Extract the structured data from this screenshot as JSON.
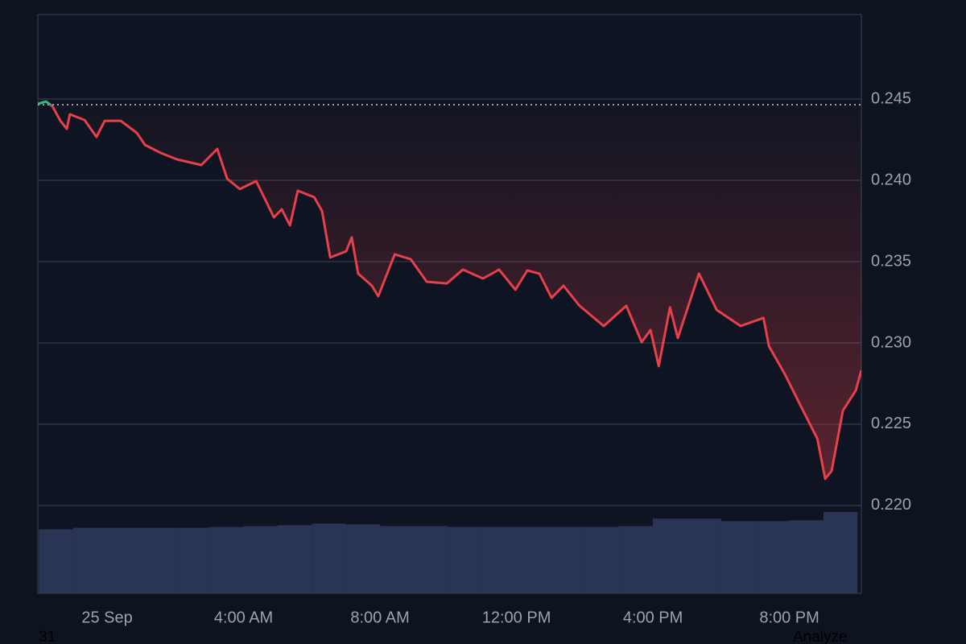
{
  "chart_data": {
    "type": "line",
    "x": [
      -2.03,
      -1.79,
      -1.6,
      -1.37,
      -1.18,
      -1.09,
      -0.66,
      -0.31,
      -0.07,
      0.4,
      0.87,
      1.11,
      1.58,
      2.05,
      2.76,
      3.23,
      3.52,
      3.89,
      4.37,
      4.89,
      5.12,
      5.36,
      5.59,
      6.07,
      6.3,
      6.54,
      7.01,
      7.17,
      7.36,
      7.76,
      7.95,
      8.43,
      8.9,
      9.37,
      9.96,
      10.43,
      11.02,
      11.49,
      11.97,
      12.32,
      12.67,
      13.03,
      13.38,
      13.85,
      14.56,
      15.22,
      15.67,
      15.93,
      16.17,
      16.5,
      16.73,
      17.35,
      17.87,
      18.57,
      19.24,
      19.4,
      19.87,
      20.34,
      20.82,
      21.05,
      21.24,
      21.57,
      21.95,
      22.11
    ],
    "series": [
      {
        "color": "#e8404a",
        "color_above": "#2ebd85",
        "values": [
          0.2447,
          0.24485,
          0.24455,
          0.24366,
          0.24317,
          0.24406,
          0.24371,
          0.24267,
          0.24366,
          0.24366,
          0.24292,
          0.24218,
          0.24168,
          0.24129,
          0.24094,
          0.24193,
          0.2401,
          0.23946,
          0.23995,
          0.23772,
          0.23822,
          0.23723,
          0.23936,
          0.23896,
          0.23812,
          0.23525,
          0.23564,
          0.23649,
          0.23426,
          0.23352,
          0.23287,
          0.23545,
          0.23515,
          0.23376,
          0.23366,
          0.23451,
          0.23396,
          0.23451,
          0.23327,
          0.23446,
          0.23426,
          0.23277,
          0.23352,
          0.23228,
          0.23104,
          0.23228,
          0.23005,
          0.23079,
          0.22857,
          0.23218,
          0.2303,
          0.23426,
          0.23203,
          0.23104,
          0.23154,
          0.2298,
          0.22807,
          0.22609,
          0.22411,
          0.22164,
          0.22213,
          0.22584,
          0.22708,
          0.22832
        ]
      }
    ],
    "reference": 0.24465,
    "volume": {
      "color": "#2a3556",
      "x": [
        -2,
        -1,
        0,
        1,
        2,
        3,
        4,
        5,
        6,
        7,
        8,
        9,
        10,
        11,
        12,
        13,
        14,
        15,
        16,
        17,
        18,
        19,
        20,
        21
      ],
      "values": [
        77,
        79,
        79,
        79,
        79,
        80,
        81,
        82,
        84,
        83,
        81,
        81,
        80,
        80,
        80,
        80,
        80,
        81,
        90,
        90,
        87,
        87,
        88,
        98
      ]
    },
    "xlim": [
      -2.03,
      22.11
    ],
    "xticks": [
      {
        "value": 0,
        "label": "25 Sep"
      },
      {
        "value": 4,
        "label": "4:00 AM"
      },
      {
        "value": 8,
        "label": "8:00 AM"
      },
      {
        "value": 12,
        "label": "12:00 PM"
      },
      {
        "value": 16,
        "label": "4:00 PM"
      },
      {
        "value": 20,
        "label": "8:00 PM"
      }
    ],
    "ylim": [
      0.2146,
      0.2502
    ],
    "yticks": [
      {
        "value": 0.22,
        "label": "0.220"
      },
      {
        "value": 0.225,
        "label": "0.225"
      },
      {
        "value": 0.23,
        "label": "0.230"
      },
      {
        "value": 0.235,
        "label": "0.235"
      },
      {
        "value": 0.24,
        "label": "0.240"
      },
      {
        "value": 0.245,
        "label": "0.245"
      }
    ],
    "grid": true,
    "footer_left": "31",
    "footer_right": "Analyze"
  }
}
